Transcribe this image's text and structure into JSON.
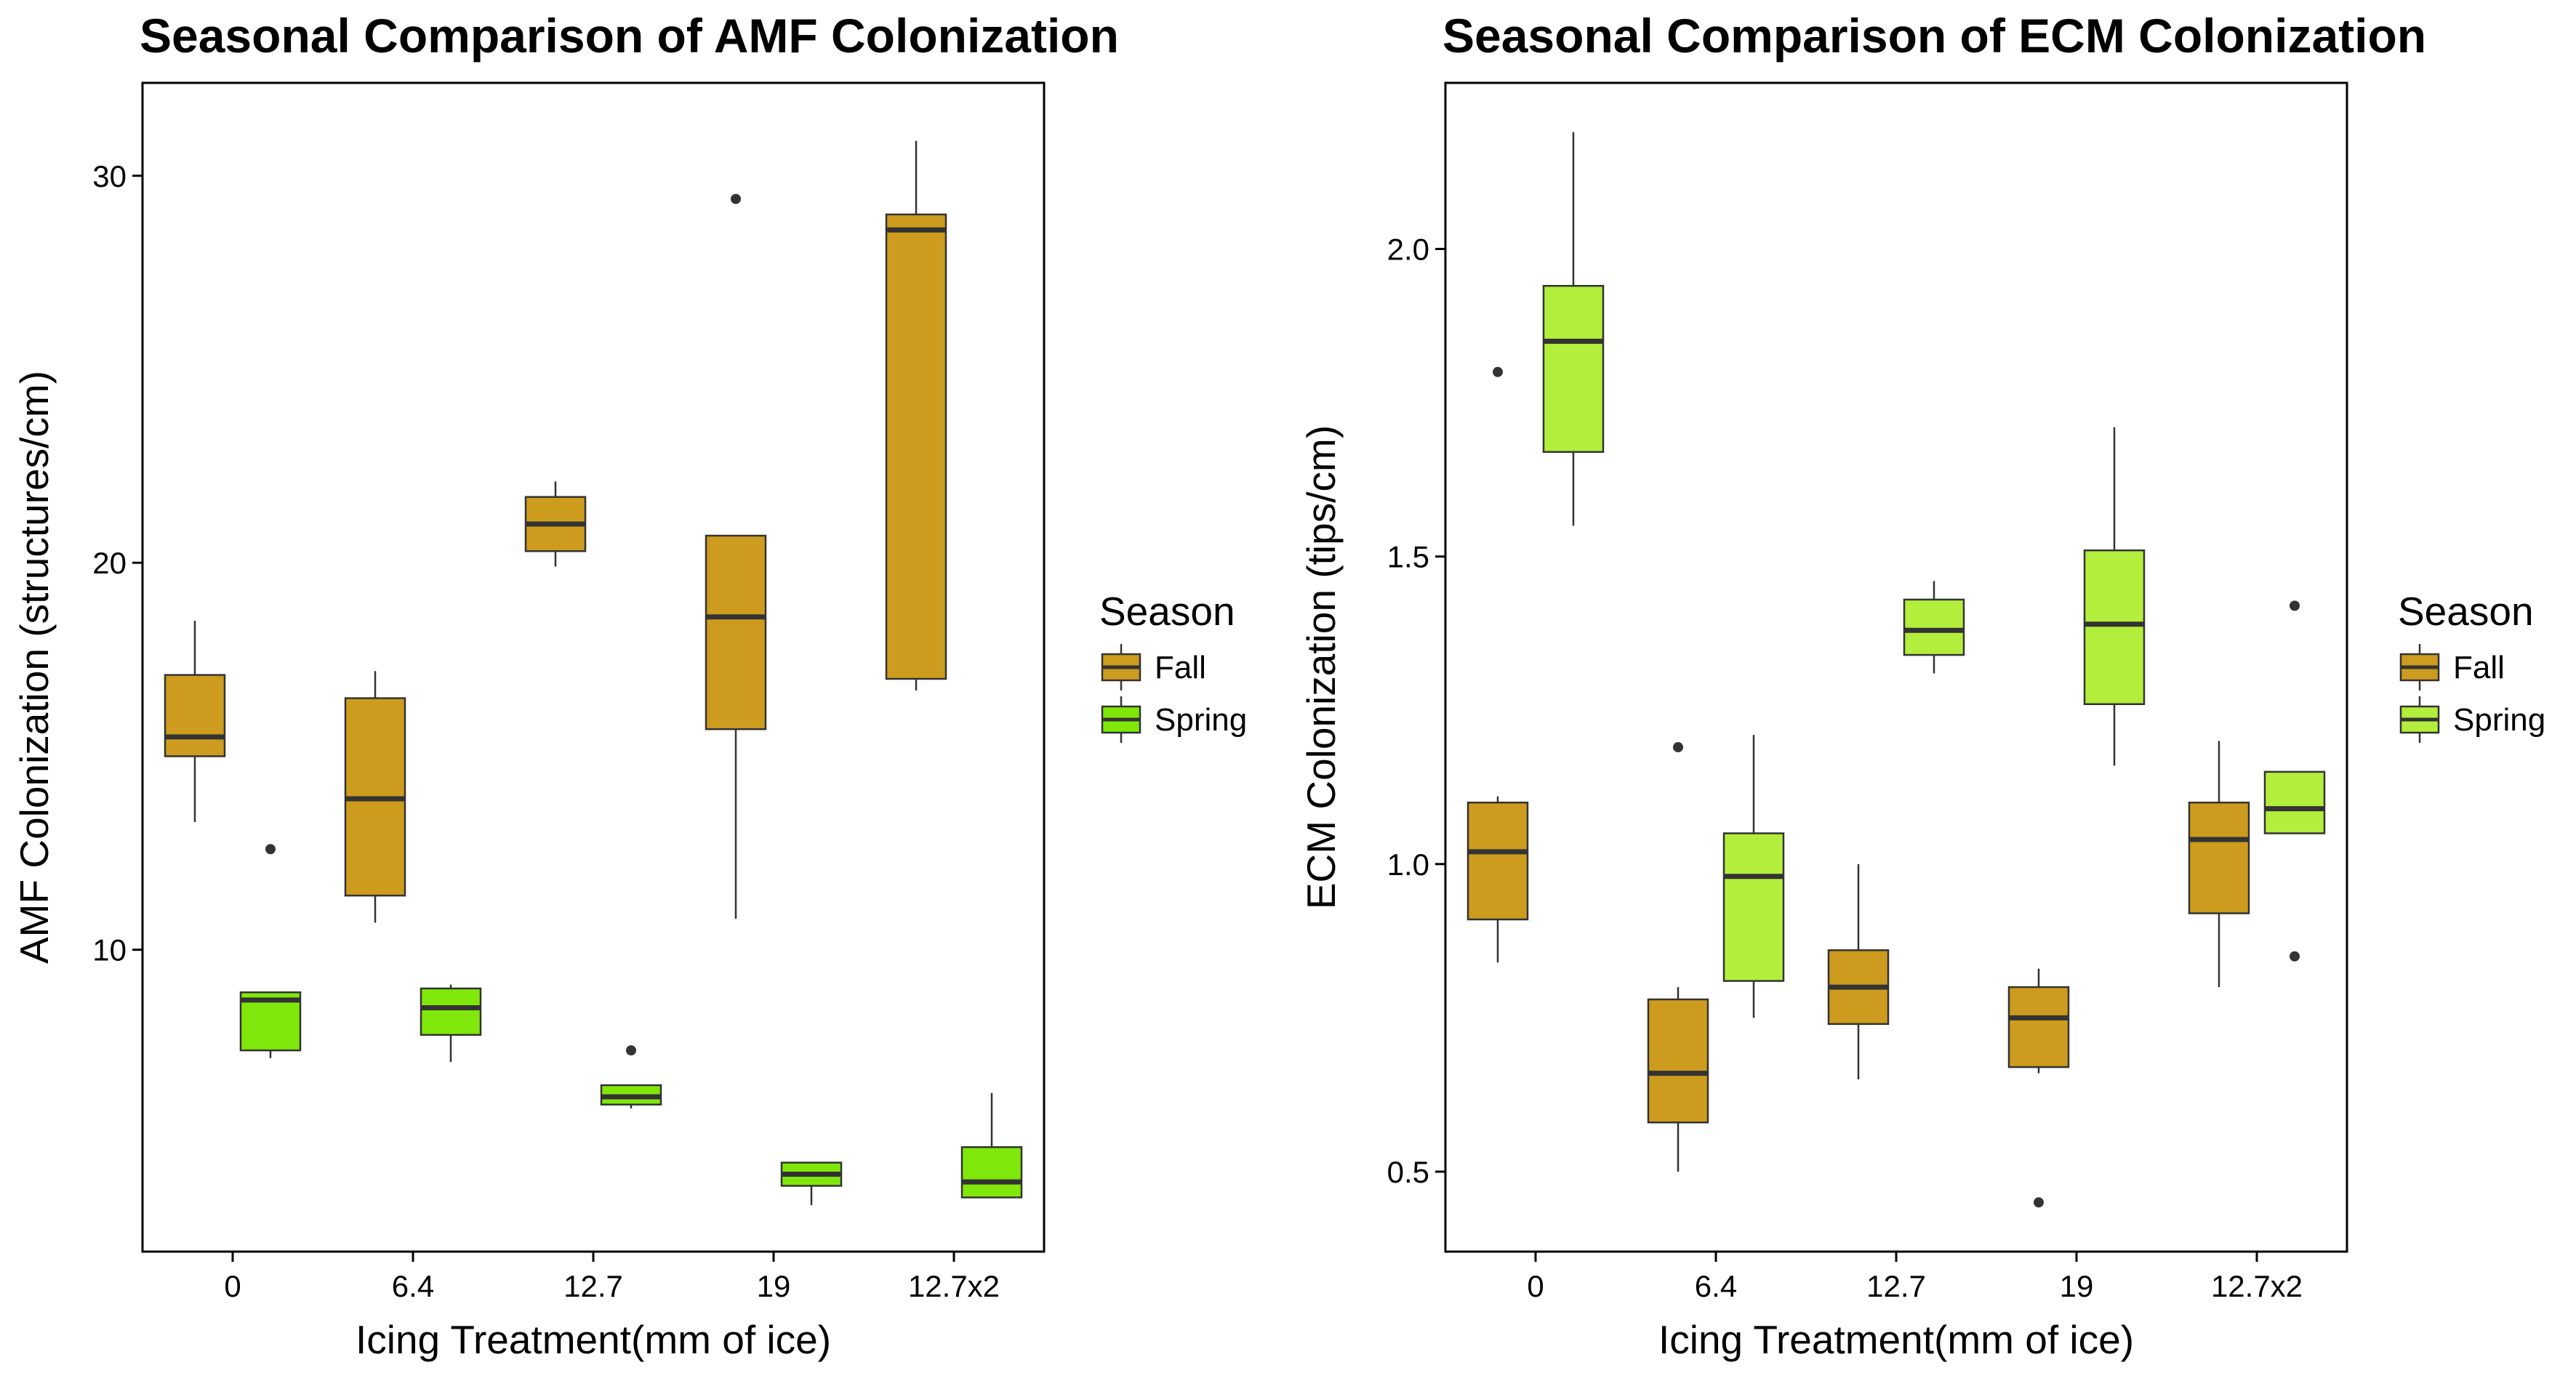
{
  "chart_data": [
    {
      "type": "box",
      "title": "Seasonal Comparison of AMF Colonization",
      "xlabel": "Icing Treatment(mm of ice)",
      "ylabel": "AMF Colonization (structures/cm)",
      "categories": [
        "0",
        "6.4",
        "12.7",
        "19",
        "12.7x2"
      ],
      "ylim": [
        2.2,
        32.4
      ],
      "yticks": [
        10,
        20,
        30
      ],
      "yticklabels": [
        "10",
        "20",
        "30"
      ],
      "legend": {
        "title": "Season",
        "position": "right"
      },
      "series": [
        {
          "name": "Fall",
          "color": "#CD9B1D",
          "boxes": [
            {
              "min": 13.3,
              "q1": 15.0,
              "median": 15.5,
              "q3": 17.1,
              "max": 18.5,
              "outliers": []
            },
            {
              "min": 10.7,
              "q1": 11.4,
              "median": 13.9,
              "q3": 16.5,
              "max": 17.2,
              "outliers": []
            },
            {
              "min": 19.9,
              "q1": 20.3,
              "median": 21.0,
              "q3": 21.7,
              "max": 22.1,
              "outliers": []
            },
            {
              "min": 10.8,
              "q1": 15.7,
              "median": 18.6,
              "q3": 20.7,
              "max": 20.7,
              "outliers": [
                29.4
              ]
            },
            {
              "min": 16.7,
              "q1": 17.0,
              "median": 28.6,
              "q3": 29.0,
              "max": 30.9,
              "outliers": []
            }
          ]
        },
        {
          "name": "Spring",
          "color": "#7FE80A",
          "boxes": [
            {
              "min": 7.2,
              "q1": 7.4,
              "median": 8.7,
              "q3": 8.9,
              "max": 8.9,
              "outliers": [
                12.6
              ]
            },
            {
              "min": 7.1,
              "q1": 7.8,
              "median": 8.5,
              "q3": 9.0,
              "max": 9.1,
              "outliers": []
            },
            {
              "min": 5.9,
              "q1": 6.0,
              "median": 6.2,
              "q3": 6.5,
              "max": 6.5,
              "outliers": [
                7.4
              ]
            },
            {
              "min": 3.4,
              "q1": 3.9,
              "median": 4.2,
              "q3": 4.5,
              "max": 4.5,
              "outliers": []
            },
            {
              "min": 3.6,
              "q1": 3.6,
              "median": 4.0,
              "q3": 4.9,
              "max": 6.3,
              "outliers": []
            }
          ]
        }
      ]
    },
    {
      "type": "box",
      "title": "Seasonal Comparison of ECM Colonization",
      "xlabel": "Icing Treatment(mm of ice)",
      "ylabel": "ECM Colonization (tips/cm)",
      "categories": [
        "0",
        "6.4",
        "12.7",
        "19",
        "12.7x2"
      ],
      "ylim": [
        0.37,
        2.27
      ],
      "yticks": [
        0.5,
        1.0,
        1.5,
        2.0
      ],
      "yticklabels": [
        "0.5",
        "1.0",
        "1.5",
        "2.0"
      ],
      "legend": {
        "title": "Season",
        "position": "right"
      },
      "series": [
        {
          "name": "Fall",
          "color": "#CD9B1D",
          "boxes": [
            {
              "min": 0.84,
              "q1": 0.91,
              "median": 1.02,
              "q3": 1.1,
              "max": 1.11,
              "outliers": [
                1.8
              ]
            },
            {
              "min": 0.5,
              "q1": 0.58,
              "median": 0.66,
              "q3": 0.78,
              "max": 0.8,
              "outliers": [
                1.19
              ]
            },
            {
              "min": 0.65,
              "q1": 0.74,
              "median": 0.8,
              "q3": 0.86,
              "max": 1.0,
              "outliers": []
            },
            {
              "min": 0.66,
              "q1": 0.67,
              "median": 0.75,
              "q3": 0.8,
              "max": 0.83,
              "outliers": [
                0.45
              ]
            },
            {
              "min": 0.8,
              "q1": 0.92,
              "median": 1.04,
              "q3": 1.1,
              "max": 1.2,
              "outliers": []
            }
          ]
        },
        {
          "name": "Spring",
          "color": "#B2EE3B",
          "boxes": [
            {
              "min": 1.55,
              "q1": 1.67,
              "median": 1.85,
              "q3": 1.94,
              "max": 2.19,
              "outliers": []
            },
            {
              "min": 0.75,
              "q1": 0.81,
              "median": 0.98,
              "q3": 1.05,
              "max": 1.21,
              "outliers": []
            },
            {
              "min": 1.31,
              "q1": 1.34,
              "median": 1.38,
              "q3": 1.43,
              "max": 1.46,
              "outliers": []
            },
            {
              "min": 1.16,
              "q1": 1.26,
              "median": 1.39,
              "q3": 1.51,
              "max": 1.71,
              "outliers": []
            },
            {
              "min": 1.05,
              "q1": 1.05,
              "median": 1.09,
              "q3": 1.15,
              "max": 1.15,
              "outliers": [
                1.42,
                0.85
              ]
            }
          ]
        }
      ]
    }
  ]
}
